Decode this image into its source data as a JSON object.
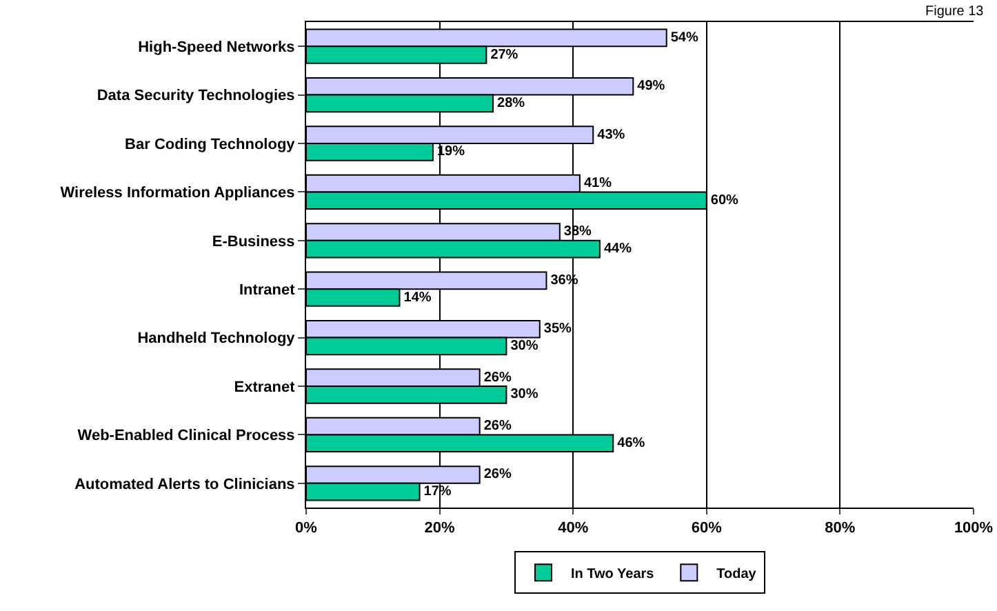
{
  "chart_data": {
    "type": "bar",
    "orientation": "horizontal",
    "categories": [
      "High-Speed Networks",
      "Data Security Technologies",
      "Bar Coding Technology",
      "Wireless Information Appliances",
      "E-Business",
      "Intranet",
      "Handheld Technology",
      "Extranet",
      "Web-Enabled Clinical Process",
      "Automated Alerts to Clinicians"
    ],
    "series": [
      {
        "name": "In Two Years",
        "color": "#00cc99",
        "values": [
          27,
          28,
          19,
          60,
          44,
          14,
          30,
          30,
          46,
          17
        ],
        "value_labels": [
          "27%",
          "28%",
          "19%",
          "60%",
          "44%",
          "14%",
          "30%",
          "30%",
          "46%",
          "17%"
        ]
      },
      {
        "name": "Today",
        "color": "#ccccff",
        "values": [
          54,
          49,
          43,
          41,
          38,
          36,
          35,
          26,
          26,
          26
        ],
        "value_labels": [
          "54%",
          "49%",
          "43%",
          "41%",
          "38%",
          "36%",
          "35%",
          "26%",
          "26%",
          "26%"
        ]
      }
    ],
    "xlim": [
      0,
      100
    ],
    "xticks": [
      {
        "value": 0,
        "label": "0%"
      },
      {
        "value": 20,
        "label": "20%"
      },
      {
        "value": 40,
        "label": "40%"
      },
      {
        "value": 60,
        "label": "60%"
      },
      {
        "value": 80,
        "label": "80%"
      },
      {
        "value": 100,
        "label": "100%"
      }
    ],
    "grid": "x",
    "legend": "bottom",
    "annotations": [
      "Figure 13"
    ]
  }
}
